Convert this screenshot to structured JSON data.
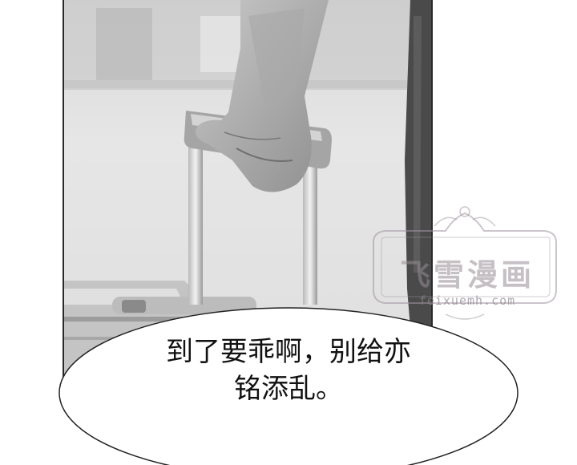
{
  "speech_bubble": {
    "line1": "到了要乖啊，别给亦",
    "line2": "铭添乱。"
  },
  "watermark": {
    "title": "飞雪漫画",
    "url": "feixuemh.com"
  },
  "colors": {
    "panel_border": "#2a2a2a",
    "text": "#111111",
    "watermark": "#968c94"
  }
}
